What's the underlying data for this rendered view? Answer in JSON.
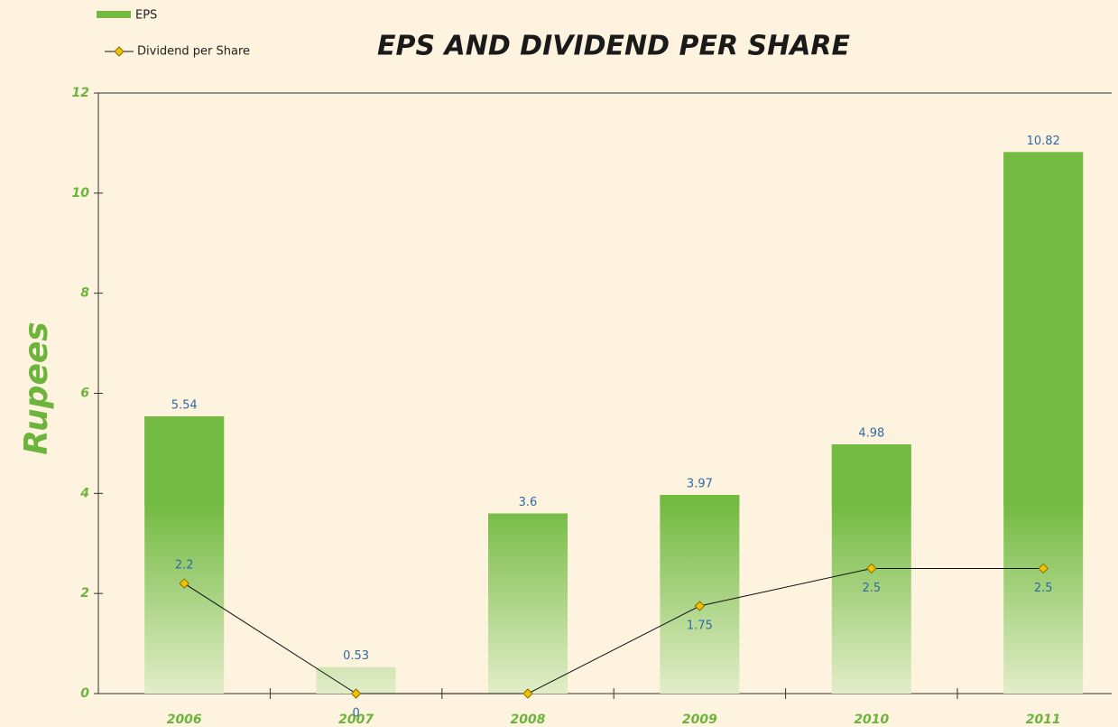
{
  "chart_data": {
    "type": "bar",
    "title": "EPS AND DIVIDEND PER SHARE",
    "y_label": "Rupees",
    "categories": [
      "2006",
      "2007",
      "2008",
      "2009",
      "2010",
      "2011"
    ],
    "series": [
      {
        "name": "EPS",
        "type": "bar",
        "color": "#74bb43",
        "values": [
          5.54,
          0.53,
          3.6,
          3.97,
          4.98,
          10.82
        ]
      },
      {
        "name": "Dividend per Share",
        "type": "line",
        "color": "#f2c200",
        "values": [
          2.2,
          0,
          0,
          1.75,
          2.5,
          2.5
        ],
        "value_labels": [
          "2.2",
          "0",
          null,
          "1.75",
          "2.5",
          "2.5"
        ]
      }
    ],
    "ylim": [
      0,
      12
    ],
    "yticks": [
      0,
      2,
      4,
      6,
      8,
      10,
      12
    ],
    "legend": "top-left"
  }
}
